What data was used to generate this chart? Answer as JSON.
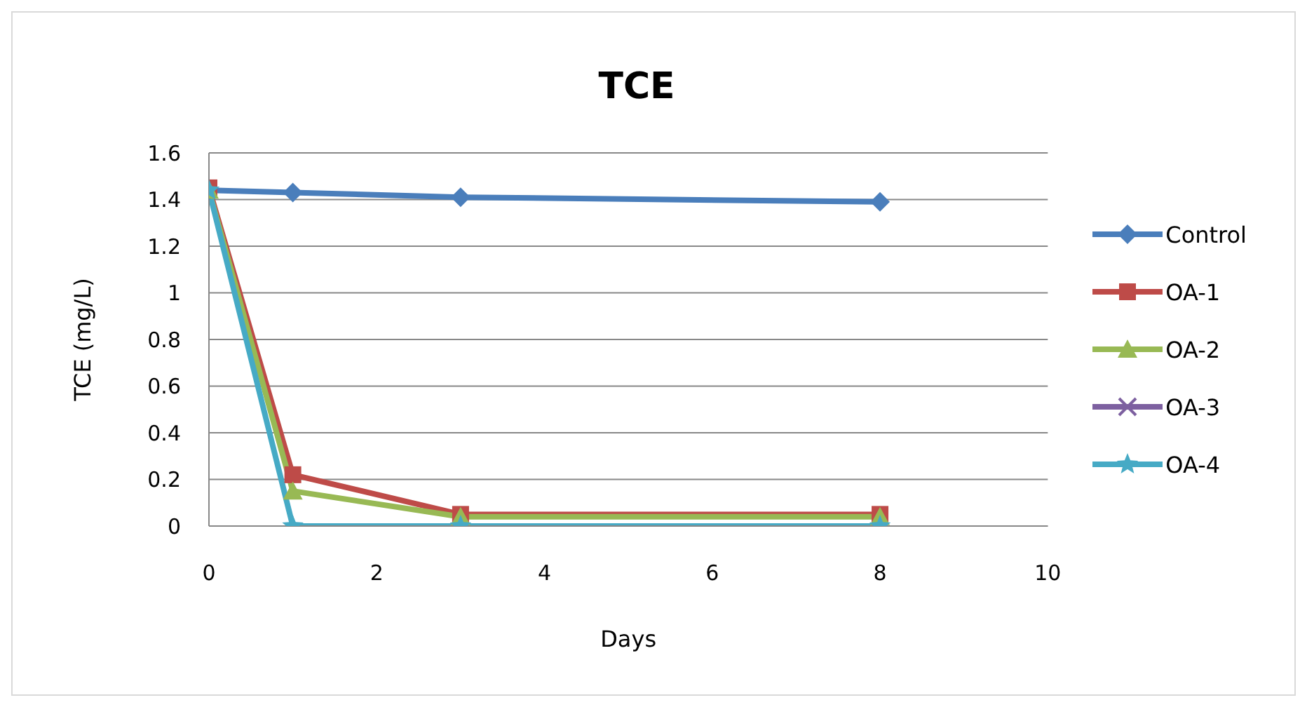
{
  "chart_data": {
    "type": "line",
    "title": "TCE",
    "xlabel": "Days",
    "ylabel": "TCE (mg/L)",
    "x": [
      0,
      1,
      3,
      8
    ],
    "series": [
      {
        "name": "Control",
        "color": "#4a7ebb",
        "marker": "diamond",
        "values": [
          1.44,
          1.43,
          1.41,
          1.39
        ]
      },
      {
        "name": "OA-1",
        "color": "#be4b48",
        "marker": "square",
        "values": [
          1.45,
          0.22,
          0.05,
          0.05
        ]
      },
      {
        "name": "OA-2",
        "color": "#98b954",
        "marker": "triangle",
        "values": [
          1.44,
          0.15,
          0.04,
          0.04
        ]
      },
      {
        "name": "OA-3",
        "color": "#7d60a0",
        "marker": "cross",
        "values": [
          null,
          null,
          null,
          null
        ]
      },
      {
        "name": "OA-4",
        "color": "#46aac5",
        "marker": "star",
        "values": [
          1.44,
          0,
          0,
          0
        ]
      }
    ],
    "xlim": [
      0,
      10
    ],
    "xticks": [
      0,
      2,
      4,
      6,
      8,
      10
    ],
    "ylim": [
      0,
      1.6
    ],
    "yticks": [
      0,
      0.2,
      0.4,
      0.6,
      0.8,
      1,
      1.2,
      1.4,
      1.6
    ],
    "grid": "y",
    "legend": "right"
  }
}
